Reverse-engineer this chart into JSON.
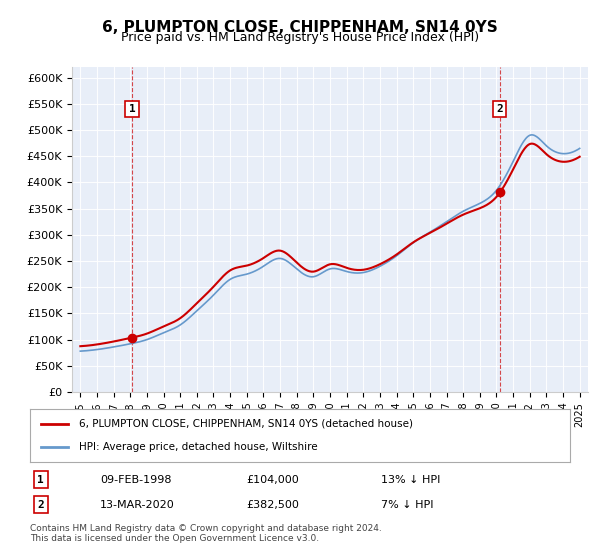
{
  "title": "6, PLUMPTON CLOSE, CHIPPENHAM, SN14 0YS",
  "subtitle": "Price paid vs. HM Land Registry's House Price Index (HPI)",
  "ylabel": "",
  "ylim": [
    0,
    620000
  ],
  "yticks": [
    0,
    50000,
    100000,
    150000,
    200000,
    250000,
    300000,
    350000,
    400000,
    450000,
    500000,
    550000,
    600000
  ],
  "ytick_labels": [
    "£0",
    "£50K",
    "£100K",
    "£150K",
    "£200K",
    "£250K",
    "£300K",
    "£350K",
    "£400K",
    "£450K",
    "£500K",
    "£550K",
    "£600K"
  ],
  "background_color": "#e8eef8",
  "plot_bg_color": "#e8eef8",
  "title_fontsize": 11,
  "subtitle_fontsize": 10,
  "hpi_years": [
    1995,
    1996,
    1997,
    1998,
    1999,
    2000,
    2001,
    2002,
    2003,
    2004,
    2005,
    2006,
    2007,
    2008,
    2009,
    2010,
    2011,
    2012,
    2013,
    2014,
    2015,
    2016,
    2017,
    2018,
    2019,
    2020,
    2021,
    2022,
    2023,
    2024,
    2025
  ],
  "hpi_values": [
    78000,
    81000,
    86000,
    92000,
    100000,
    113000,
    128000,
    155000,
    185000,
    215000,
    225000,
    240000,
    255000,
    235000,
    220000,
    235000,
    230000,
    228000,
    240000,
    260000,
    285000,
    305000,
    325000,
    345000,
    360000,
    385000,
    440000,
    490000,
    470000,
    455000,
    465000
  ],
  "sale_dates": [
    1998.1,
    2020.2
  ],
  "sale_prices": [
    104000,
    382500
  ],
  "sale_labels": [
    "1",
    "2"
  ],
  "sale1_date": "09-FEB-1998",
  "sale1_price": "£104,000",
  "sale1_hpi": "13% ↓ HPI",
  "sale2_date": "13-MAR-2020",
  "sale2_price": "£382,500",
  "sale2_hpi": "7% ↓ HPI",
  "legend_label1": "6, PLUMPTON CLOSE, CHIPPENHAM, SN14 0YS (detached house)",
  "legend_label2": "HPI: Average price, detached house, Wiltshire",
  "footer": "Contains HM Land Registry data © Crown copyright and database right 2024.\nThis data is licensed under the Open Government Licence v3.0.",
  "line_color_price": "#cc0000",
  "line_color_hpi": "#6699cc",
  "vline_color": "#cc0000"
}
